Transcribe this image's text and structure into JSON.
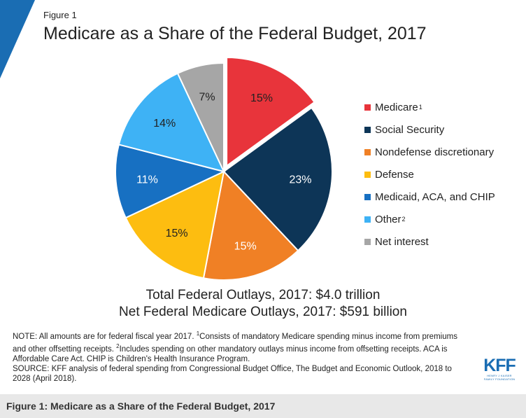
{
  "figure": {
    "label": "Figure 1",
    "title": "Medicare as a Share of the Federal Budget, 2017",
    "accent_color": "#1a6db3"
  },
  "chart_data": {
    "type": "pie",
    "title": "Medicare as a Share of the Federal Budget, 2017",
    "start_angle_deg": 0,
    "direction": "clockwise",
    "exploded_slice": "Medicare",
    "slices": [
      {
        "name": "Medicare",
        "legend_sup": "1",
        "value": 15,
        "label": "15%",
        "color": "#e8343b",
        "label_color": "#222222"
      },
      {
        "name": "Social Security",
        "legend_sup": "",
        "value": 23,
        "label": "23%",
        "color": "#0d3557",
        "label_color": "#ffffff"
      },
      {
        "name": "Nondefense discretionary",
        "legend_sup": "",
        "value": 15,
        "label": "15%",
        "color": "#f08025",
        "label_color": "#ffffff"
      },
      {
        "name": "Defense",
        "legend_sup": "",
        "value": 15,
        "label": "15%",
        "color": "#fdbd10",
        "label_color": "#222222"
      },
      {
        "name": "Medicaid, ACA, and CHIP",
        "legend_sup": "",
        "value": 11,
        "label": "11%",
        "color": "#1770c2",
        "label_color": "#ffffff"
      },
      {
        "name": "Other",
        "legend_sup": "2",
        "value": 14,
        "label": "14%",
        "color": "#3eb2f5",
        "label_color": "#222222"
      },
      {
        "name": "Net interest",
        "legend_sup": "",
        "value": 7,
        "label": "7%",
        "color": "#a6a6a6",
        "label_color": "#222222"
      }
    ],
    "legend_position": "right"
  },
  "totals": {
    "line1": "Total Federal Outlays, 2017: $4.0 trillion",
    "line2": "Net Federal Medicare Outlays, 2017: $591 billion"
  },
  "notes": {
    "part1": "NOTE: All amounts are for federal fiscal year 2017. ",
    "sup1": "1",
    "part2": "Consists of mandatory Medicare spending minus income from premiums and other offsetting receipts. ",
    "sup2": "2",
    "part3": "Includes spending on other mandatory outlays minus income from offsetting receipts. ACA is Affordable Care Act. CHIP is Children's Health Insurance Program.",
    "source": "SOURCE: KFF analysis of federal spending from Congressional Budget Office, The Budget and Economic Outlook, 2018 to 2028 (April 2018)."
  },
  "logo": {
    "mark": "KFF",
    "line1": "HENRY J KAISER",
    "line2": "FAMILY FOUNDATION"
  },
  "caption": "Figure 1: Medicare as a Share of the Federal Budget, 2017"
}
